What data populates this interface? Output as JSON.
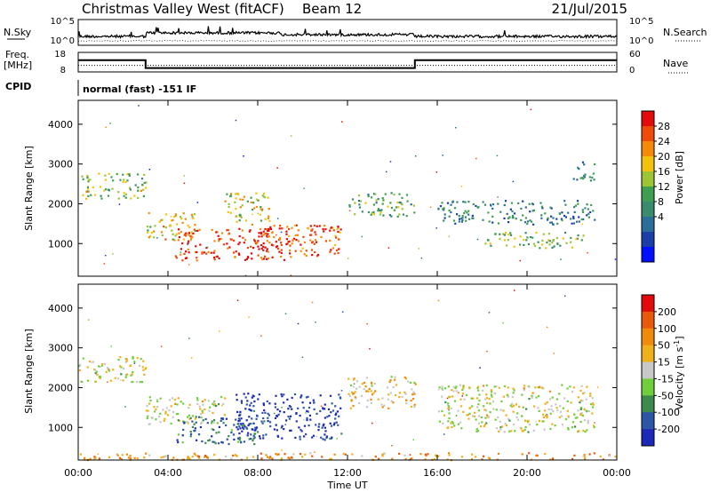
{
  "header": {
    "title": "Christmas Valley West (fitACF)",
    "beam": "Beam 12",
    "date": "21/Jul/2015"
  },
  "params": {
    "nsky": {
      "label": "N.Sky",
      "ticks": [
        "10^5",
        "10^0"
      ]
    },
    "nsearch": {
      "label": "N.Search",
      "ticks": [
        "10^5",
        "10^0"
      ]
    },
    "freq": {
      "label_top": "Freq.",
      "label_bottom": "[MHz]",
      "ticks": [
        "18",
        "8"
      ],
      "ylim": [
        8,
        18
      ],
      "segments": [
        {
          "t0": 0,
          "t1": 3.0,
          "v": 14
        },
        {
          "t0": 3.0,
          "t1": 15.0,
          "v": 10
        },
        {
          "t0": 15.0,
          "t1": 24,
          "v": 14
        }
      ]
    },
    "nave": {
      "label": "Nave",
      "ticks": [
        "60",
        "0"
      ],
      "ylim": [
        0,
        60
      ],
      "level": 20
    },
    "cpid": {
      "label": "CPID",
      "text": "normal (fast) -151 IF"
    }
  },
  "chart_data": [
    {
      "type": "heatmap",
      "name": "power",
      "ylabel": "Slant Range [km]",
      "xlim": [
        0,
        24
      ],
      "ylim": [
        180,
        4600
      ],
      "yticks": [
        1000,
        2000,
        3000,
        4000
      ],
      "colorbar": {
        "label": "Power [dB]",
        "ticks": [
          "28",
          "24",
          "20",
          "16",
          "12",
          "8",
          "4"
        ],
        "colors": [
          "#0010ff",
          "#1c3ea8",
          "#2c6e9a",
          "#3a8a6e",
          "#3f9e4f",
          "#9cc536",
          "#f2c20c",
          "#f58a0a",
          "#ef4a0a",
          "#e20a0a"
        ]
      },
      "regions": [
        {
          "t0": 0.0,
          "t1": 3.0,
          "r0": 2150,
          "r1": 2800,
          "level": 0.55
        },
        {
          "t0": 3.0,
          "t1": 5.3,
          "r0": 1100,
          "r1": 1800,
          "level": 0.65
        },
        {
          "t0": 4.3,
          "t1": 9.5,
          "r0": 600,
          "r1": 1400,
          "level": 0.9
        },
        {
          "t0": 6.5,
          "t1": 8.5,
          "r0": 1500,
          "r1": 2300,
          "level": 0.6
        },
        {
          "t0": 8.0,
          "t1": 11.7,
          "r0": 700,
          "r1": 1500,
          "level": 0.85
        },
        {
          "t0": 12.0,
          "t1": 15.0,
          "r0": 1700,
          "r1": 2300,
          "level": 0.45
        },
        {
          "t0": 16.0,
          "t1": 23.0,
          "r0": 1500,
          "r1": 2100,
          "level": 0.3
        },
        {
          "t0": 18.0,
          "t1": 22.5,
          "r0": 900,
          "r1": 1300,
          "level": 0.5
        },
        {
          "t0": 22.0,
          "t1": 23.0,
          "r0": 2600,
          "r1": 3100,
          "level": 0.3
        }
      ]
    },
    {
      "type": "heatmap",
      "name": "velocity",
      "ylabel": "Slant Range [km]",
      "xlabel": "Time UT",
      "xlim": [
        0,
        24
      ],
      "ylim": [
        180,
        4600
      ],
      "yticks": [
        1000,
        2000,
        3000,
        4000
      ],
      "xticks": [
        "00:00",
        "04:00",
        "08:00",
        "12:00",
        "16:00",
        "20:00",
        "00:00"
      ],
      "colorbar": {
        "label": "Velocity [m s^-1]",
        "ticks": [
          "200",
          "100",
          "50",
          "15",
          "-15",
          "-50",
          "-100",
          "-200"
        ],
        "colors": [
          "#1c28b8",
          "#2e56a6",
          "#3d8a4f",
          "#6fcf3a",
          "#c8c8c8",
          "#f0b01a",
          "#f08a0a",
          "#e85a0a",
          "#e20a0a"
        ]
      },
      "regions": [
        {
          "t0": 0.0,
          "t1": 3.0,
          "r0": 2150,
          "r1": 2800,
          "level": 0.5
        },
        {
          "t0": 3.0,
          "t1": 6.5,
          "r0": 1100,
          "r1": 1800,
          "level": 0.5
        },
        {
          "t0": 4.3,
          "t1": 8.0,
          "r0": 600,
          "r1": 1300,
          "level": 0.2
        },
        {
          "t0": 7.0,
          "t1": 11.7,
          "r0": 700,
          "r1": 1900,
          "level": 0.05
        },
        {
          "t0": 12.0,
          "t1": 15.0,
          "r0": 1500,
          "r1": 2300,
          "level": 0.6
        },
        {
          "t0": 16.0,
          "t1": 23.0,
          "r0": 900,
          "r1": 2100,
          "level": 0.5
        },
        {
          "t0": 0.0,
          "t1": 24.0,
          "r0": 200,
          "r1": 380,
          "level": 0.7
        }
      ]
    }
  ]
}
